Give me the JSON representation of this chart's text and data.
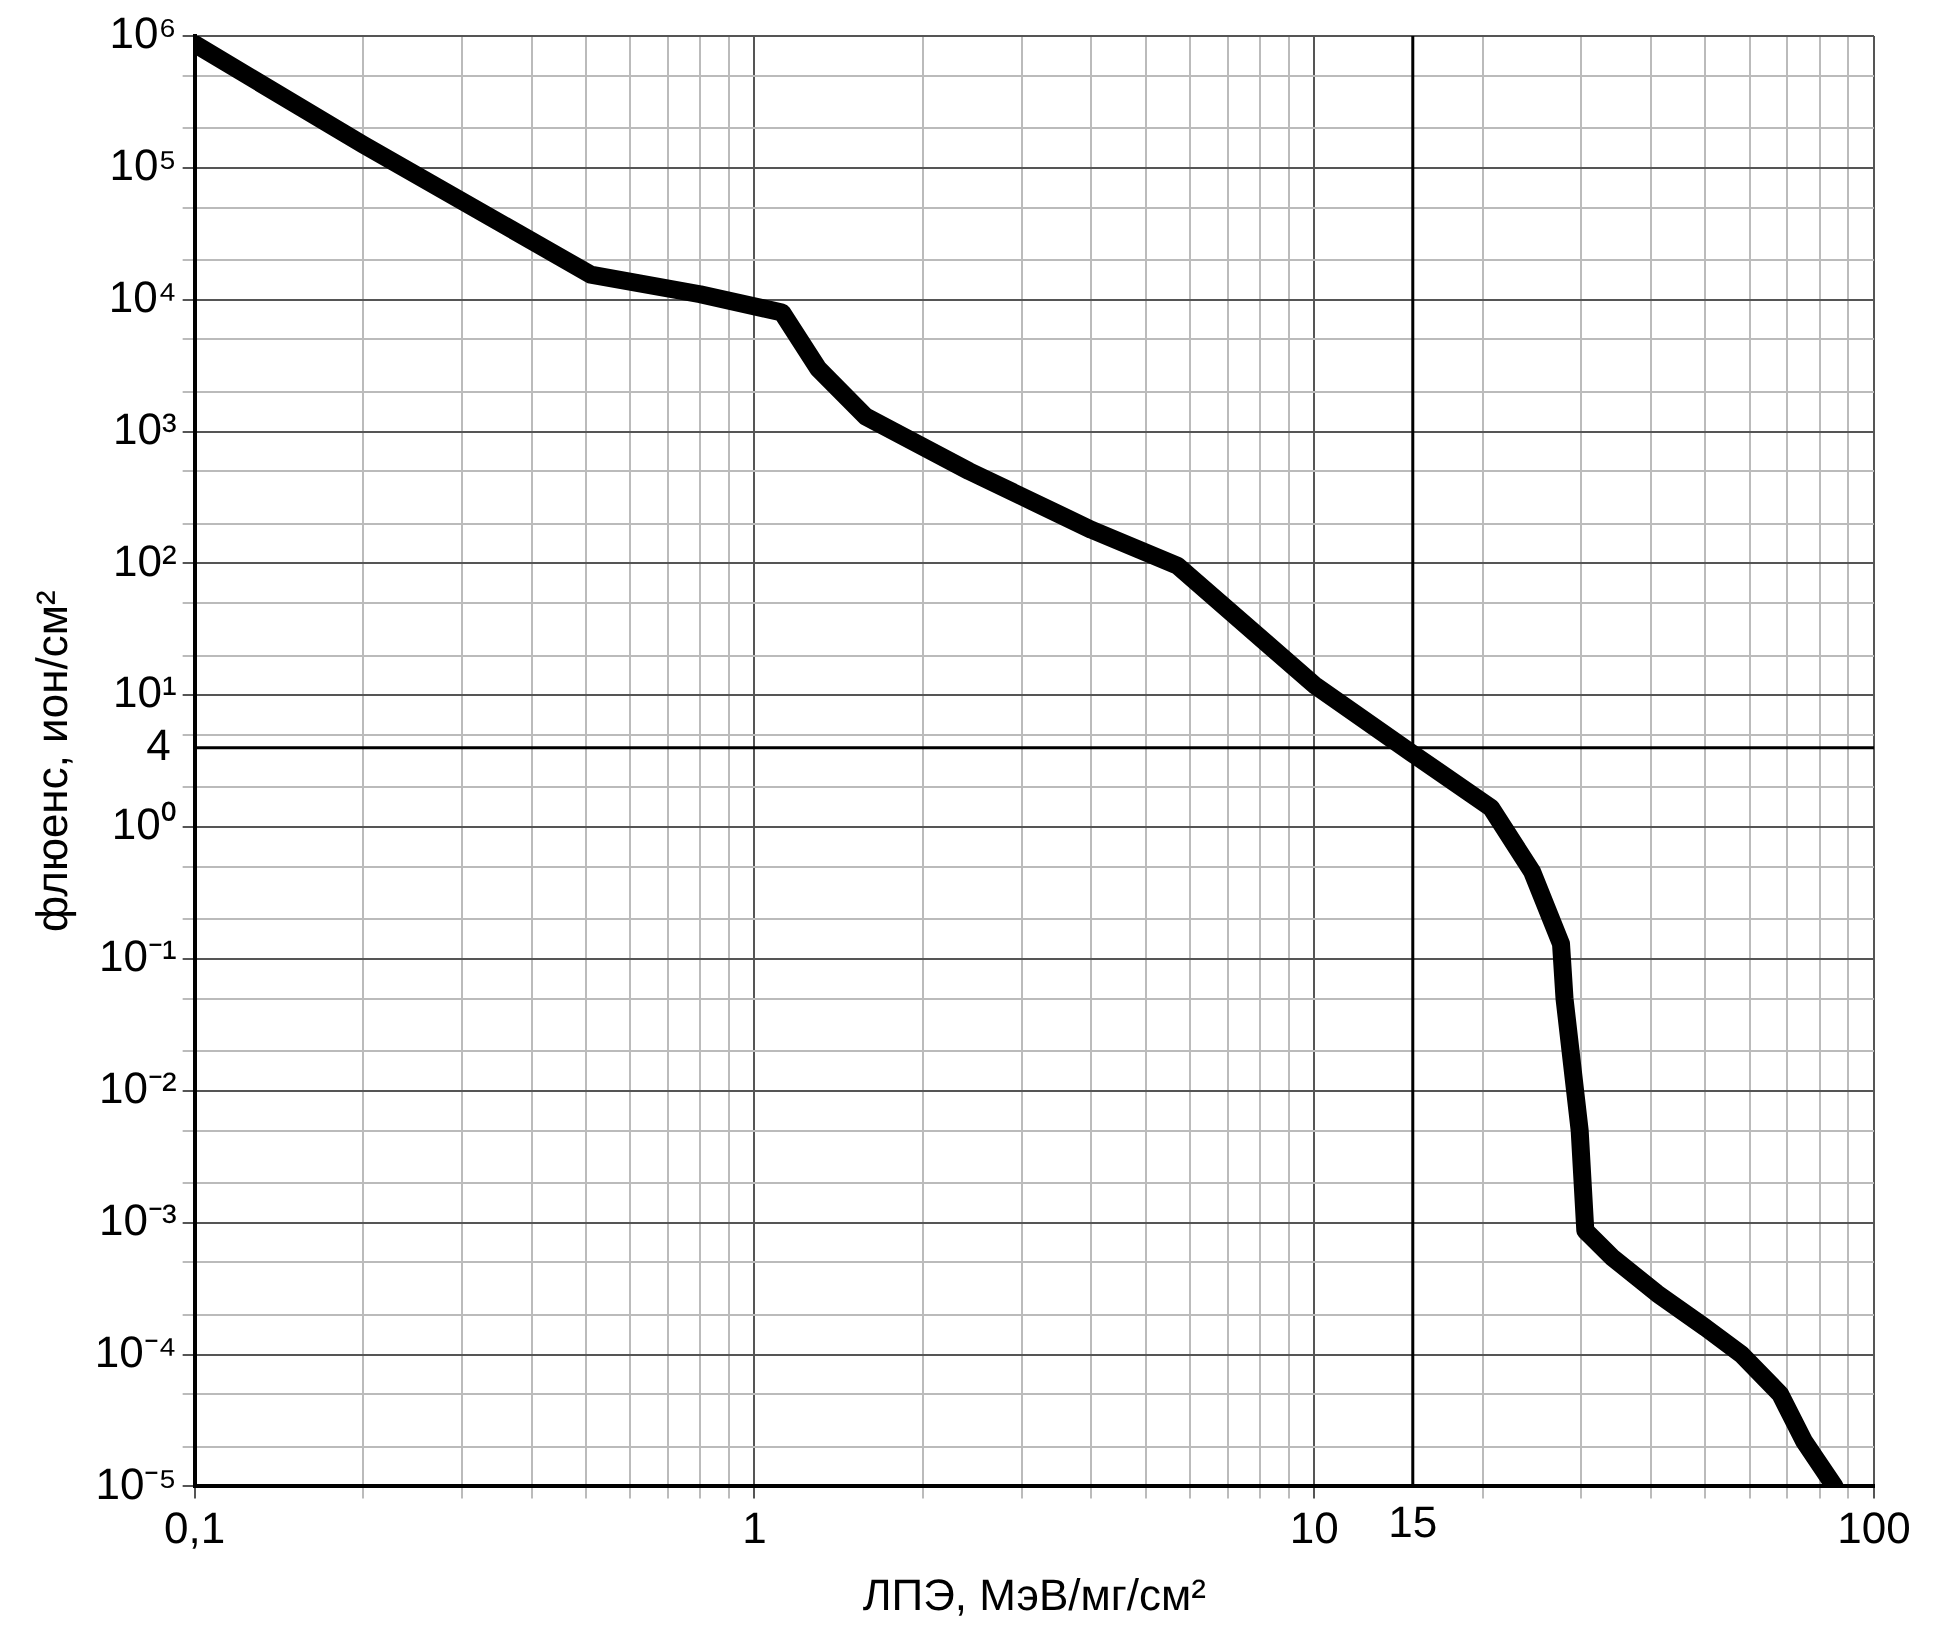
{
  "chart_data": {
    "type": "line",
    "xlabel": "ЛПЭ, МэВ/мг/см²",
    "ylabel": "флюенс, ион/см²",
    "log": "xy",
    "grid": true,
    "legend": false,
    "marker": "none",
    "line_style": "solid",
    "xlim": [
      0.1,
      100
    ],
    "ylim": [
      1e-05,
      1000000.0
    ],
    "xticks": [
      {
        "value": 0.1,
        "label": "0,1"
      },
      {
        "value": 0.2,
        "label": null
      },
      {
        "value": 0.3,
        "label": null
      },
      {
        "value": 0.4,
        "label": null
      },
      {
        "value": 0.5,
        "label": null
      },
      {
        "value": 0.6,
        "label": null
      },
      {
        "value": 0.7,
        "label": null
      },
      {
        "value": 0.8,
        "label": null
      },
      {
        "value": 0.9,
        "label": null
      },
      1,
      {
        "value": 2,
        "label": null
      },
      {
        "value": 3,
        "label": null
      },
      {
        "value": 4,
        "label": null
      },
      {
        "value": 5,
        "label": null
      },
      {
        "value": 6,
        "label": null
      },
      {
        "value": 7,
        "label": null
      },
      {
        "value": 8,
        "label": null
      },
      {
        "value": 9,
        "label": null
      },
      10,
      {
        "value": 20,
        "label": null
      },
      {
        "value": 30,
        "label": null
      },
      {
        "value": 40,
        "label": null
      },
      {
        "value": 50,
        "label": null
      },
      {
        "value": 60,
        "label": null
      },
      {
        "value": 70,
        "label": null
      },
      {
        "value": 80,
        "label": null
      },
      {
        "value": 90,
        "label": null
      },
      100
    ],
    "yticks": [
      {
        "value": 1e-05,
        "label": "10⁻⁵"
      },
      {
        "value": 2e-05,
        "label": null
      },
      {
        "value": 5e-05,
        "label": null
      },
      {
        "value": 0.0001,
        "label": "10⁻⁴"
      },
      {
        "value": 0.0002,
        "label": null
      },
      {
        "value": 0.0005,
        "label": null
      },
      {
        "value": 0.001,
        "label": "10⁻³"
      },
      {
        "value": 0.002,
        "label": null
      },
      {
        "value": 0.005,
        "label": null
      },
      {
        "value": 0.01,
        "label": "10⁻²"
      },
      {
        "value": 0.02,
        "label": null
      },
      {
        "value": 0.05,
        "label": null
      },
      {
        "value": 0.1,
        "label": "10⁻¹"
      },
      {
        "value": 0.2,
        "label": null
      },
      {
        "value": 0.5,
        "label": null
      },
      {
        "value": 1,
        "label": "10⁰"
      },
      {
        "value": 2,
        "label": null
      },
      {
        "value": 5,
        "label": null
      },
      {
        "value": 10,
        "label": "10¹"
      },
      {
        "value": 20,
        "label": null
      },
      {
        "value": 50,
        "label": null
      },
      {
        "value": 100,
        "label": "10²"
      },
      {
        "value": 200,
        "label": null
      },
      {
        "value": 500,
        "label": null
      },
      {
        "value": 1000,
        "label": "10³"
      },
      {
        "value": 2000,
        "label": null
      },
      {
        "value": 5000,
        "label": null
      },
      {
        "value": 10000,
        "label": "10⁴"
      },
      {
        "value": 20000,
        "label": null
      },
      {
        "value": 50000,
        "label": null
      },
      {
        "value": 100000,
        "label": "10⁵"
      },
      {
        "value": 200000,
        "label": null
      },
      {
        "value": 500000,
        "label": null
      },
      {
        "value": 1000000,
        "label": "10⁶"
      }
    ],
    "ref_lines": [
      {
        "axis": "y",
        "value": 4,
        "label": "4"
      },
      {
        "axis": "x",
        "value": 15,
        "label": "15"
      }
    ],
    "series": [
      {
        "color": "#000000",
        "x": [
          0.1,
          0.2,
          0.51,
          0.8,
          1.12,
          1.3,
          1.58,
          2.42,
          4,
          5.7,
          10,
          15,
          20.7,
          24.5,
          27.6,
          28,
          29.8,
          30.5,
          34,
          41,
          50,
          58,
          68,
          75,
          85
        ],
        "values": [
          870000,
          150000,
          15500,
          11000,
          8000,
          3000,
          1300,
          500,
          180,
          96,
          12,
          3.6,
          1.4,
          0.46,
          0.13,
          0.05,
          0.005,
          0.00087,
          0.00055,
          0.00029,
          0.00016,
          0.0001,
          5e-05,
          2.2e-05,
          1e-05
        ]
      }
    ]
  }
}
